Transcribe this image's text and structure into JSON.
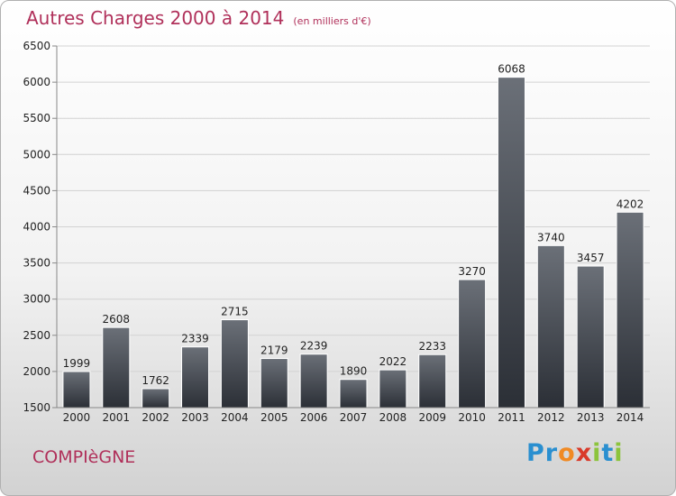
{
  "header": {
    "title": "Autres Charges 2000 à 2014",
    "unit": "(en milliers d'€)"
  },
  "footer": {
    "city": "COMPIèGNE",
    "logo_letters": [
      "P",
      "r",
      "o",
      "x",
      "i",
      "t",
      "i"
    ],
    "logo_colors": [
      "#2a8fd0",
      "#2a8fd0",
      "#f08a24",
      "#d93a2a",
      "#8cc43c",
      "#2a8fd0",
      "#8cc43c"
    ]
  },
  "colors": {
    "title": "#b0305a",
    "bar_top": "#6b7078",
    "bar_bottom": "#2b2f36",
    "grid": "#d2d2d2",
    "axis_text": "#222222"
  },
  "chart_data": {
    "type": "bar",
    "categories": [
      "2000",
      "2001",
      "2002",
      "2003",
      "2004",
      "2005",
      "2006",
      "2007",
      "2008",
      "2009",
      "2010",
      "2011",
      "2012",
      "2013",
      "2014"
    ],
    "values": [
      1999,
      2608,
      1762,
      2339,
      2715,
      2179,
      2239,
      1890,
      2022,
      2233,
      3270,
      6068,
      3740,
      3457,
      4202
    ],
    "ylim": [
      1500,
      6500
    ],
    "yticks": [
      1500,
      2000,
      2500,
      3000,
      3500,
      4000,
      4500,
      5000,
      5500,
      6000,
      6500
    ],
    "grid": true,
    "data_labels": true
  }
}
